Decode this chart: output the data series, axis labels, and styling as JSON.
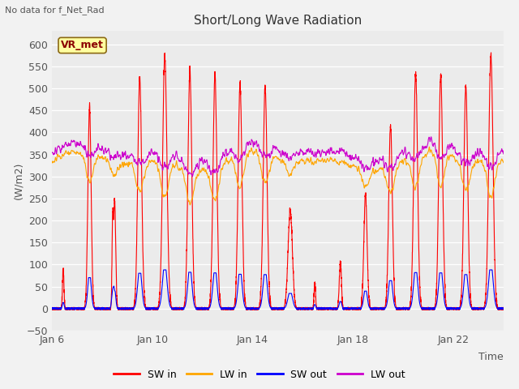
{
  "title": "Short/Long Wave Radiation",
  "ylabel": "(W/m2)",
  "xlabel": "Time",
  "top_left_text": "No data for f_Net_Rad",
  "box_label": "VR_met",
  "ylim": [
    -50,
    630
  ],
  "yticks": [
    -50,
    0,
    50,
    100,
    150,
    200,
    250,
    300,
    350,
    400,
    450,
    500,
    550,
    600
  ],
  "xtick_labels": [
    "Jan 6",
    "Jan 10",
    "Jan 14",
    "Jan 18",
    "Jan 22"
  ],
  "xtick_positions": [
    0,
    4,
    8,
    12,
    16
  ],
  "legend_labels": [
    "SW in",
    "LW in",
    "SW out",
    "LW out"
  ],
  "colors": {
    "SW_in": "#FF0000",
    "LW_in": "#FFA500",
    "SW_out": "#0000FF",
    "LW_out": "#CC00CC"
  },
  "fig_bg": "#F2F2F2",
  "plot_bg": "#EBEBEB",
  "line_width": 0.8,
  "seed": 42,
  "n_days": 18,
  "ppd": 288
}
